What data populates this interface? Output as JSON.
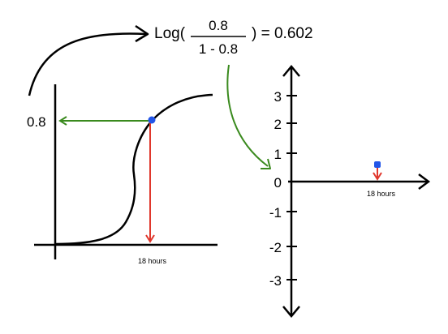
{
  "formula": {
    "prefix": "Log(",
    "numerator": "0.8",
    "denominator": "1 - 0.8",
    "suffix": ") = 0.602"
  },
  "left_plot": {
    "y_value_label": "0.8",
    "x_label": "18 hours"
  },
  "right_plot": {
    "y_ticks": [
      "3",
      "2",
      "1",
      "0",
      "-1",
      "-2",
      "-3"
    ],
    "x_label": "18 hours"
  },
  "colors": {
    "curve": "#000000",
    "green_arrow": "#3a8a1e",
    "red_arrow": "#e0372c",
    "point": "#2255e8"
  }
}
